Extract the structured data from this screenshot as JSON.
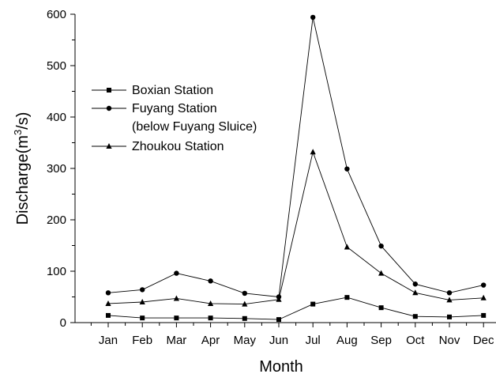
{
  "chart_data": {
    "type": "line",
    "title": "",
    "xlabel": "Month",
    "ylabel": "Discharge(m",
    "ylabel_sup": "3",
    "ylabel_end": "/s)",
    "categories": [
      "Jan",
      "Feb",
      "Mar",
      "Apr",
      "May",
      "Jun",
      "Jul",
      "Aug",
      "Sep",
      "Oct",
      "Nov",
      "Dec"
    ],
    "yticks": [
      "0",
      "100",
      "200",
      "300",
      "400",
      "500",
      "600"
    ],
    "ylim": [
      0,
      600
    ],
    "grid": false,
    "legend_position": "upper-left",
    "series": [
      {
        "name": "Boxian Station",
        "marker": "square",
        "values": [
          14,
          9,
          9,
          9,
          8,
          6,
          36,
          49,
          29,
          12,
          11,
          14
        ]
      },
      {
        "name": "Fuyang Station",
        "name_line2": "(below Fuyang Sluice)",
        "marker": "circle",
        "values": [
          58,
          64,
          96,
          81,
          57,
          50,
          594,
          299,
          149,
          75,
          58,
          73
        ]
      },
      {
        "name": "Zhoukou Station",
        "marker": "triangle",
        "values": [
          37,
          40,
          47,
          37,
          36,
          45,
          332,
          147,
          96,
          58,
          44,
          48
        ]
      }
    ]
  }
}
